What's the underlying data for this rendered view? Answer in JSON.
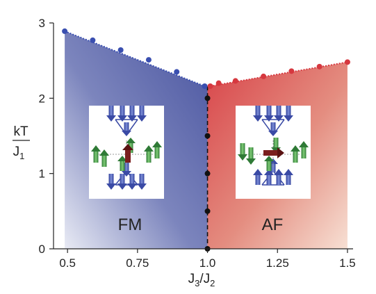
{
  "chart_data": {
    "type": "scatter",
    "xlim": [
      0.45,
      1.52
    ],
    "ylim": [
      0,
      3
    ],
    "x_ticks": [
      "0.5",
      "0.75",
      "1.0",
      "1.25",
      "1.5"
    ],
    "y_ticks": [
      "0",
      "1",
      "2",
      "3"
    ],
    "xlabel": {
      "main": "J",
      "sub1": "3",
      "slash": "/J",
      "sub2": "2"
    },
    "ylabel": {
      "numerator": "kT",
      "denominator_main": "J",
      "denominator_sub": "1"
    },
    "regions": [
      {
        "label": "FM",
        "color": "#5a64a8"
      },
      {
        "label": "AF",
        "color": "#d9514f"
      }
    ],
    "series": [
      {
        "color": "#3a4fb0",
        "points": [
          [
            0.49,
            2.89
          ],
          [
            0.59,
            2.77
          ],
          [
            0.69,
            2.64
          ],
          [
            0.79,
            2.51
          ],
          [
            0.89,
            2.35
          ],
          [
            0.99,
            2.16
          ]
        ]
      },
      {
        "color": "#d6383f",
        "points": [
          [
            1.01,
            2.16
          ],
          [
            1.04,
            2.2
          ],
          [
            1.1,
            2.23
          ],
          [
            1.2,
            2.29
          ],
          [
            1.3,
            2.36
          ],
          [
            1.4,
            2.42
          ],
          [
            1.5,
            2.48
          ]
        ]
      },
      {
        "color": "#111111",
        "points": [
          [
            1.0,
            2.0
          ],
          [
            1.0,
            1.5
          ],
          [
            1.0,
            1.0
          ],
          [
            1.0,
            0.5
          ],
          [
            1.0,
            0.0
          ]
        ]
      }
    ],
    "boundary": {
      "fm_line": [
        [
          0.49,
          2.89
        ],
        [
          0.99,
          2.16
        ]
      ],
      "af_line": [
        [
          1.01,
          2.16
        ],
        [
          1.5,
          2.48
        ]
      ],
      "vertical_x": 1.0
    }
  }
}
